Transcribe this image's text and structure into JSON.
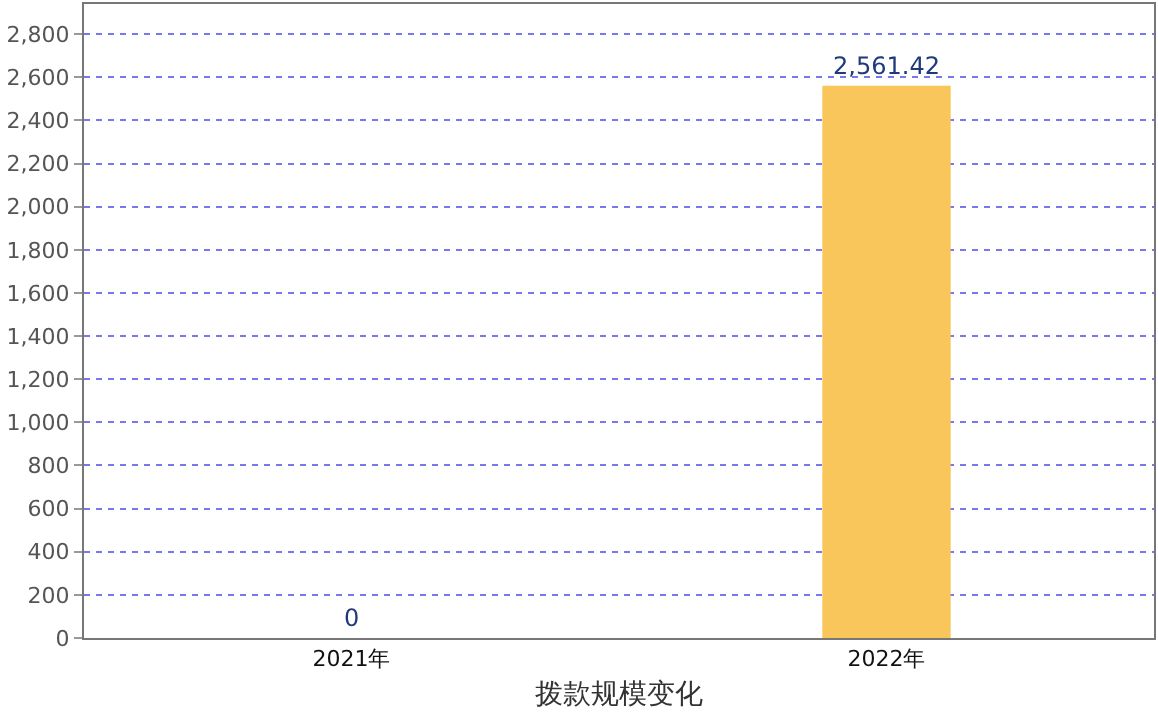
{
  "chart_data": {
    "type": "bar",
    "xlabel": "拨款规模变化",
    "categories": [
      "2021年",
      "2022年"
    ],
    "values": [
      0,
      2561.42
    ],
    "value_labels": [
      "0",
      "2,561.42"
    ],
    "color": "#f8c65a",
    "ylim": [
      0,
      2940
    ],
    "yticks": [
      0,
      200,
      400,
      600,
      800,
      {
        "value": 1000,
        "label": "1,000"
      },
      {
        "value": 1200,
        "label": "1,200"
      },
      {
        "value": 1400,
        "label": "1,400"
      },
      {
        "value": 1600,
        "label": "1,600"
      },
      {
        "value": 1800,
        "label": "1,800"
      },
      {
        "value": 2000,
        "label": "2,000"
      },
      {
        "value": 2200,
        "label": "2,200"
      },
      {
        "value": 2400,
        "label": "2,400"
      },
      {
        "value": 2600,
        "label": "2,600"
      },
      {
        "value": 2800,
        "label": "2,800"
      }
    ],
    "grid": "y",
    "legend": false
  }
}
